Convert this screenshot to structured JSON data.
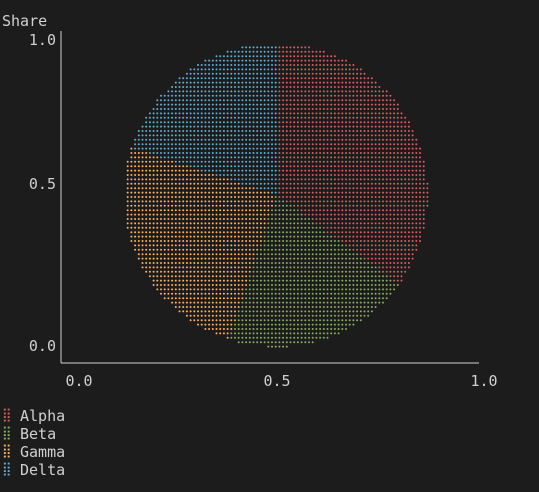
{
  "chart_data": {
    "type": "pie",
    "ylabel": "Share",
    "x_ticks": [
      "0.0",
      "0.5",
      "1.0"
    ],
    "y_ticks": [
      "0.0",
      "0.5",
      "1.0"
    ],
    "xlim": [
      0,
      1
    ],
    "ylim": [
      0,
      1
    ],
    "legend_position": "bottom-left",
    "series": [
      {
        "name": "Alpha",
        "value": 35,
        "color": "#d75f5f"
      },
      {
        "name": "Beta",
        "value": 20,
        "color": "#87af5f"
      },
      {
        "name": "Gamma",
        "value": 25,
        "color": "#ffaf5f"
      },
      {
        "name": "Delta",
        "value": 20,
        "color": "#5fafd7"
      }
    ]
  }
}
